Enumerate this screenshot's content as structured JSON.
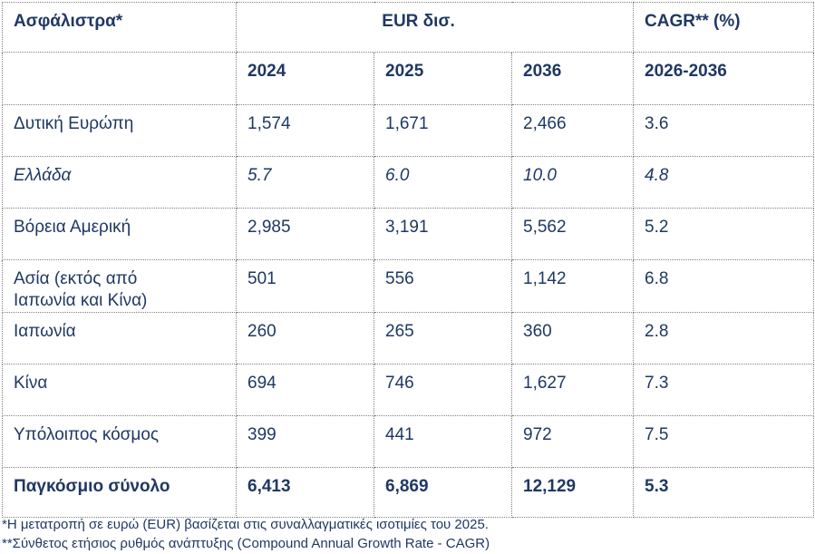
{
  "table": {
    "header": {
      "row_label": "Ασφάλιστρα*",
      "currency_unit": "EUR δισ.",
      "cagr_label": "CAGR** (%)"
    },
    "years": [
      "2024",
      "2025",
      "2036"
    ],
    "cagr_period": "2026-2036",
    "rows": [
      {
        "region": "Δυτική Ευρώπη",
        "v2024": "1,574",
        "v2025": "1,671",
        "v2036": "2,466",
        "cagr": "3.6"
      },
      {
        "region": "Ελλάδα",
        "v2024": "5.7",
        "v2025": "6.0",
        "v2036": "10.0",
        "cagr": "4.8"
      },
      {
        "region": "Βόρεια Αμερική",
        "v2024": "2,985",
        "v2025": "3,191",
        "v2036": "5,562",
        "cagr": "5.2"
      },
      {
        "region_line1": "Ασία (εκτός από",
        "region_line2": "Ιαπωνία και Κίνα)",
        "v2024": "501",
        "v2025": "556",
        "v2036": "1,142",
        "cagr": "6.8"
      },
      {
        "region": "Ιαπωνία",
        "v2024": "260",
        "v2025": "265",
        "v2036": "360",
        "cagr": "2.8"
      },
      {
        "region": "Κίνα",
        "v2024": "694",
        "v2025": "746",
        "v2036": "1,627",
        "cagr": "7.3"
      },
      {
        "region": "Υπόλοιπος κόσμος",
        "v2024": "399",
        "v2025": "441",
        "v2036": "972",
        "cagr": "7.5"
      }
    ],
    "total": {
      "region": "Παγκόσμιο σύνολο",
      "v2024": "6,413",
      "v2025": "6,869",
      "v2036": "12,129",
      "cagr": "5.3"
    }
  },
  "footnotes": {
    "note1": "*Η μετατροπή σε ευρώ (EUR) βασίζεται στις συναλλαγματικές ισοτιμίες του 2025.",
    "note2": "**Σύνθετος ετήσιος ρυθμός ανάπτυξης (Compound Annual Growth Rate - CAGR)"
  },
  "colors": {
    "text": "#1f3864",
    "border": "#7f7f7f"
  }
}
